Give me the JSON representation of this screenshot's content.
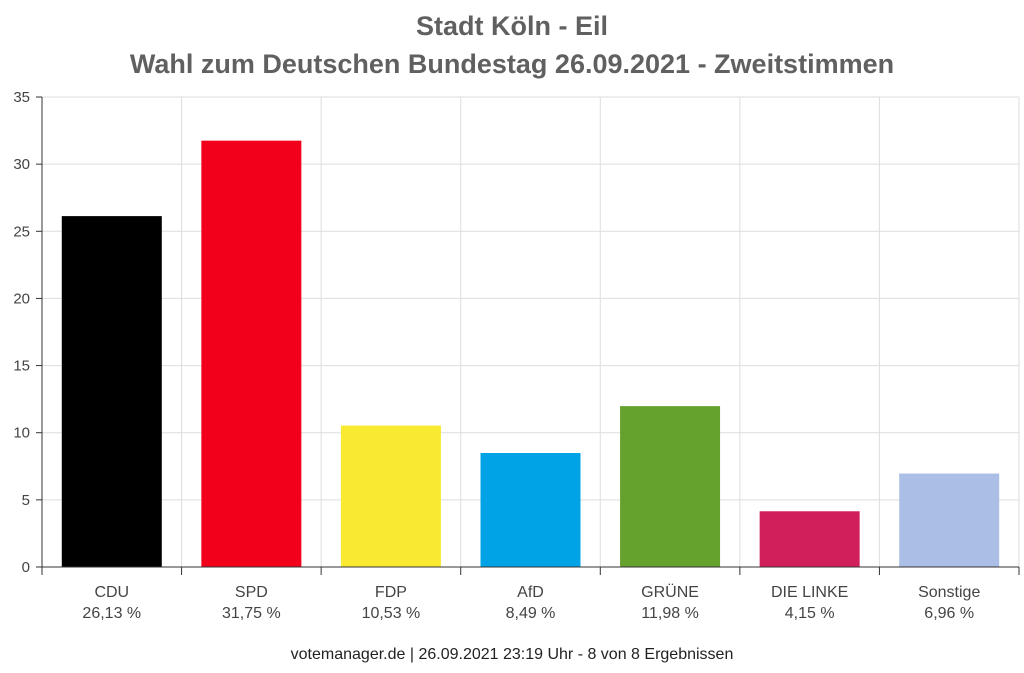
{
  "chart_data": {
    "type": "bar",
    "title_line1": "Stadt Köln - Eil",
    "title_line2": "Wahl zum Deutschen Bundestag 26.09.2021  - Zweitstimmen",
    "categories": [
      "CDU",
      "SPD",
      "FDP",
      "AfD",
      "GRÜNE",
      "DIE LINKE",
      "Sonstige"
    ],
    "values": [
      26.13,
      31.75,
      10.53,
      8.49,
      11.98,
      4.15,
      6.96
    ],
    "value_labels": [
      "26,13 %",
      "31,75 %",
      "10,53 %",
      "8,49 %",
      "11,98 %",
      "4,15 %",
      "6,96 %"
    ],
    "colors": [
      "#000000",
      "#f2001b",
      "#f9e930",
      "#00a3e5",
      "#64a12d",
      "#d01f5a",
      "#abbee6"
    ],
    "ylim": [
      0,
      35
    ],
    "yticks": [
      "0",
      "5",
      "10",
      "15",
      "20",
      "25",
      "30",
      "35"
    ],
    "grid": true,
    "xlabel": "",
    "ylabel": ""
  },
  "footer": "votemanager.de | 26.09.2021 23:19 Uhr - 8 von 8 Ergebnissen"
}
